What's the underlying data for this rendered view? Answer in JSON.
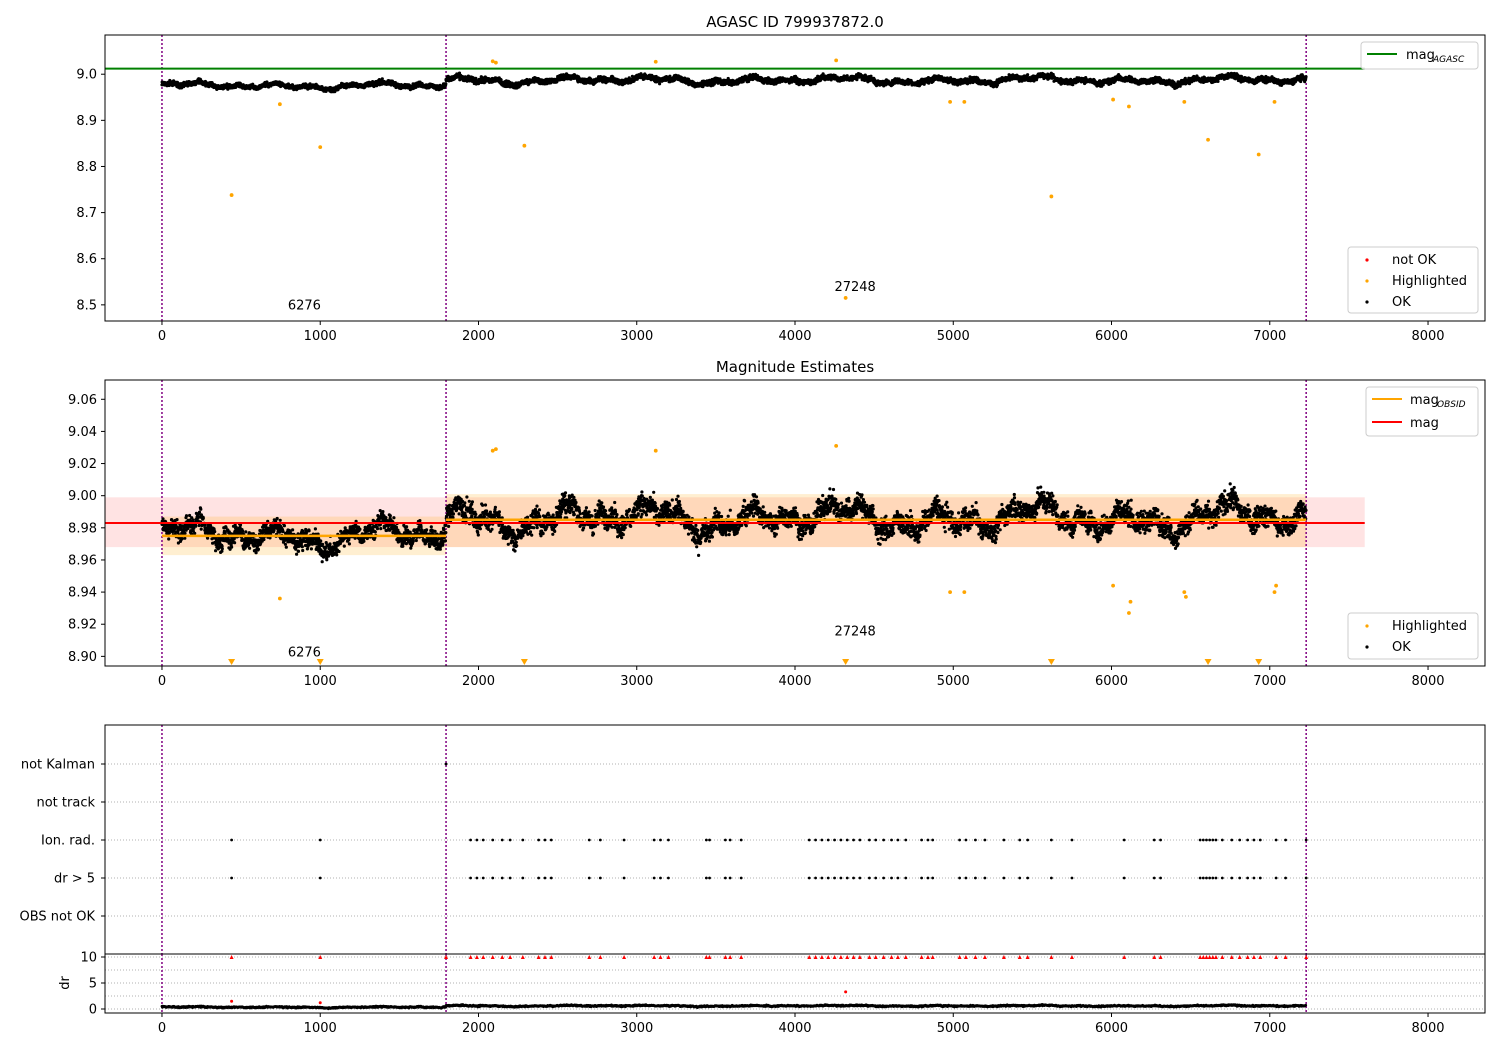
{
  "chart_data": [
    {
      "type": "scatter",
      "title": "AGASC ID 799937872.0",
      "xlim": [
        -360,
        8360
      ],
      "ylim": [
        8.465,
        9.085
      ],
      "xticks": [
        0,
        1000,
        2000,
        3000,
        4000,
        5000,
        6000,
        7000,
        8000
      ],
      "yticks": [
        8.5,
        8.6,
        8.7,
        8.8,
        8.9,
        9.0
      ],
      "obsid_boundaries": [
        0,
        1795,
        7230
      ],
      "obsid_labels": [
        {
          "text": "6276",
          "x": 900,
          "y": 8.49
        },
        {
          "text": "27248",
          "x": 4380,
          "y": 8.53
        }
      ],
      "reference_line": {
        "name": "mag_AGASC",
        "y": 9.012,
        "x_range": [
          -360,
          7600
        ],
        "color": "#008000"
      },
      "legend_top": {
        "position": "top-right",
        "items": [
          {
            "label": "mag",
            "sub": "AGASC",
            "color": "#008000"
          }
        ]
      },
      "legend_bottom": {
        "position": "lower-right",
        "items": [
          {
            "label": "not OK",
            "color": "#ff0000"
          },
          {
            "label": "Highlighted",
            "color": "#ffa500"
          },
          {
            "label": "OK",
            "color": "#000000"
          }
        ]
      },
      "series": [
        {
          "name": "OK",
          "color": "#000000",
          "segments": [
            {
              "x0": 0,
              "x1": 1795,
              "mean": 8.975,
              "scatter": 0.01
            },
            {
              "x0": 1795,
              "x1": 7230,
              "mean": 8.987,
              "scatter": 0.012
            }
          ]
        },
        {
          "name": "Highlighted",
          "color": "#ffa500",
          "points": [
            [
              440,
              8.738
            ],
            [
              745,
              8.935
            ],
            [
              1000,
              8.842
            ],
            [
              2090,
              9.028
            ],
            [
              2110,
              9.025
            ],
            [
              2290,
              8.845
            ],
            [
              3120,
              9.027
            ],
            [
              4260,
              9.03
            ],
            [
              4320,
              8.515
            ],
            [
              4980,
              8.94
            ],
            [
              5070,
              8.94
            ],
            [
              5620,
              8.735
            ],
            [
              6010,
              8.945
            ],
            [
              6110,
              8.93
            ],
            [
              6460,
              8.94
            ],
            [
              6610,
              8.858
            ],
            [
              6930,
              8.826
            ],
            [
              7030,
              8.94
            ]
          ]
        }
      ]
    },
    {
      "type": "scatter",
      "title": "Magnitude Estimates",
      "xlim": [
        -360,
        8360
      ],
      "ylim": [
        8.894,
        9.072
      ],
      "xticks": [
        0,
        1000,
        2000,
        3000,
        4000,
        5000,
        6000,
        7000,
        8000
      ],
      "yticks": [
        8.9,
        8.92,
        8.94,
        8.96,
        8.98,
        9.0,
        9.02,
        9.04,
        9.06
      ],
      "obsid_boundaries": [
        0,
        1795,
        7230
      ],
      "obsid_labels": [
        {
          "text": "6276",
          "x": 900,
          "y": 8.9
        },
        {
          "text": "27248",
          "x": 4380,
          "y": 8.913
        }
      ],
      "mag_line": {
        "name": "mag",
        "y": 8.983,
        "band": [
          8.968,
          8.999
        ],
        "x_range": [
          -360,
          7600
        ],
        "color": "#ff0000"
      },
      "mag_obsid": {
        "name": "mag_OBSID",
        "color": "#ffa500",
        "segments": [
          {
            "x0": 0,
            "x1": 1795,
            "y": 8.975,
            "band": [
              8.963,
              8.987
            ]
          },
          {
            "x0": 1795,
            "x1": 7230,
            "y": 8.985,
            "band": [
              8.968,
              9.001
            ]
          }
        ]
      },
      "legend_top": {
        "position": "top-right",
        "items": [
          {
            "label": "mag",
            "sub": "OBSID",
            "color": "#ffa500"
          },
          {
            "label": "mag",
            "sub": "",
            "color": "#ff0000"
          }
        ]
      },
      "legend_bottom": {
        "position": "lower-right",
        "items": [
          {
            "label": "Highlighted",
            "color": "#ffa500"
          },
          {
            "label": "OK",
            "color": "#000000"
          }
        ]
      },
      "series": [
        {
          "name": "OK",
          "color": "#000000",
          "segments": [
            {
              "x0": 0,
              "x1": 1795,
              "mean": 8.975,
              "scatter": 0.012
            },
            {
              "x0": 1795,
              "x1": 7230,
              "mean": 8.986,
              "scatter": 0.014
            }
          ]
        },
        {
          "name": "Highlighted",
          "color": "#ffa500",
          "points": [
            [
              745,
              8.936
            ],
            [
              2090,
              9.028
            ],
            [
              2110,
              9.029
            ],
            [
              3120,
              9.028
            ],
            [
              4260,
              9.031
            ],
            [
              4980,
              8.94
            ],
            [
              5070,
              8.94
            ],
            [
              6010,
              8.944
            ],
            [
              6110,
              8.927
            ],
            [
              6120,
              8.934
            ],
            [
              6460,
              8.94
            ],
            [
              6470,
              8.937
            ],
            [
              7030,
              8.94
            ],
            [
              7040,
              8.944
            ]
          ]
        },
        {
          "name": "Highlighted (clipped)",
          "color": "#ffa500",
          "x": [
            440,
            1000,
            2290,
            4320,
            5620,
            6610,
            6930
          ]
        }
      ]
    },
    {
      "type": "scatter",
      "title": "",
      "xlim": [
        -360,
        8360
      ],
      "categories": [
        "not Kalman",
        "not track",
        "Ion. rad.",
        "dr > 5",
        "OBS not OK"
      ],
      "obsid_boundaries": [
        0,
        1795,
        7230
      ],
      "flag_points": {
        "not Kalman": [
          1795
        ],
        "not track": [],
        "Ion. rad.": [
          440,
          1000,
          1950,
          1990,
          2030,
          2090,
          2150,
          2200,
          2280,
          2380,
          2420,
          2460,
          2700,
          2770,
          2920,
          3110,
          3150,
          3200,
          3440,
          3460,
          3560,
          3590,
          3660,
          4090,
          4130,
          4170,
          4210,
          4250,
          4290,
          4330,
          4370,
          4410,
          4470,
          4510,
          4560,
          4610,
          4650,
          4700,
          4800,
          4840,
          4870,
          5040,
          5080,
          5140,
          5200,
          5320,
          5420,
          5470,
          5620,
          5750,
          6080,
          6270,
          6310,
          6560,
          6580,
          6600,
          6620,
          6640,
          6660,
          6700,
          6760,
          6810,
          6860,
          6900,
          6940,
          7040,
          7100,
          7230
        ],
        "dr > 5": [
          440,
          1000,
          1950,
          1990,
          2030,
          2090,
          2150,
          2200,
          2280,
          2380,
          2420,
          2460,
          2700,
          2770,
          2920,
          3110,
          3150,
          3200,
          3440,
          3460,
          3560,
          3590,
          3660,
          4090,
          4130,
          4170,
          4210,
          4250,
          4290,
          4330,
          4370,
          4410,
          4470,
          4510,
          4560,
          4610,
          4650,
          4700,
          4800,
          4840,
          4870,
          5040,
          5080,
          5140,
          5200,
          5320,
          5420,
          5470,
          5620,
          5750,
          6080,
          6270,
          6310,
          6560,
          6580,
          6600,
          6620,
          6640,
          6660,
          6700,
          6760,
          6810,
          6860,
          6900,
          6940,
          7040,
          7100,
          7230
        ],
        "OBS not OK": []
      }
    },
    {
      "type": "scatter",
      "title": "",
      "xlabel": "",
      "ylabel": "dr",
      "xlim": [
        -360,
        8360
      ],
      "ylim": [
        -0.5,
        10.5
      ],
      "xticks": [
        0,
        1000,
        2000,
        3000,
        4000,
        5000,
        6000,
        7000,
        8000
      ],
      "yticks": [
        0,
        5,
        10
      ],
      "obsid_boundaries": [
        0,
        1795,
        7230
      ],
      "clipped_markers": {
        "y": 10,
        "color": "#ff0000",
        "x": [
          440,
          1000,
          1795,
          1950,
          1990,
          2030,
          2090,
          2150,
          2200,
          2280,
          2380,
          2420,
          2460,
          2700,
          2770,
          2920,
          3110,
          3150,
          3200,
          3440,
          3460,
          3560,
          3590,
          3660,
          4090,
          4130,
          4170,
          4210,
          4250,
          4290,
          4330,
          4370,
          4410,
          4470,
          4510,
          4560,
          4610,
          4650,
          4700,
          4800,
          4840,
          4870,
          5040,
          5080,
          5140,
          5200,
          5320,
          5420,
          5470,
          5620,
          5750,
          6080,
          6270,
          6310,
          6560,
          6580,
          6600,
          6620,
          6640,
          6660,
          6700,
          6760,
          6810,
          6860,
          6900,
          6940,
          7040,
          7100,
          7230
        ]
      },
      "extra_points": [
        [
          4320,
          3.3
        ],
        [
          440,
          1.5
        ],
        [
          1000,
          1.2
        ]
      ],
      "series": [
        {
          "name": "dr",
          "color": "#000000",
          "x_range": [
            0,
            7230
          ],
          "mean": 0.6,
          "scatter": 0.25
        }
      ]
    }
  ]
}
